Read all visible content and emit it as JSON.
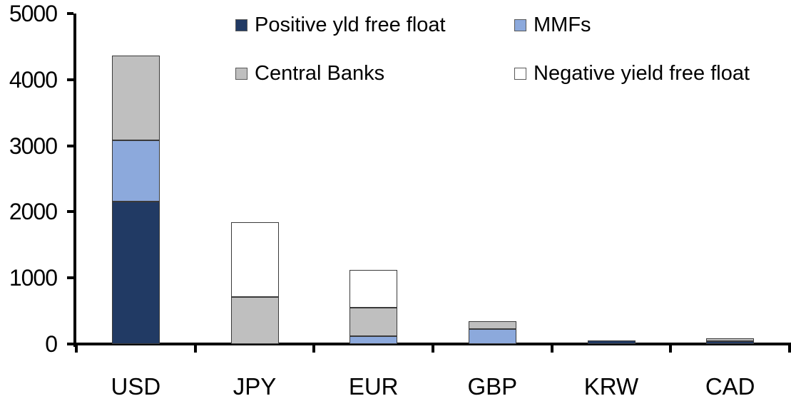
{
  "chart_data": {
    "type": "bar",
    "subtype": "stacked-vertical",
    "title": "",
    "xlabel": "",
    "ylabel": "",
    "categories": [
      "USD",
      "JPY",
      "EUR",
      "GBP",
      "KRW",
      "CAD"
    ],
    "series": [
      {
        "name": "Positive yld free float",
        "color": "#213A64",
        "values": [
          2150,
          0,
          0,
          0,
          50,
          40
        ]
      },
      {
        "name": "MMFs",
        "color": "#8CA9DC",
        "values": [
          930,
          0,
          120,
          230,
          0,
          0
        ]
      },
      {
        "name": "Central Banks",
        "color": "#BFBFBF",
        "values": [
          1280,
          710,
          430,
          110,
          0,
          45
        ]
      },
      {
        "name": "Negative yield free float",
        "color": "#FFFFFF",
        "values": [
          0,
          1130,
          570,
          0,
          0,
          0
        ]
      }
    ],
    "totals": [
      4360,
      1840,
      1120,
      340,
      50,
      85
    ],
    "ylim": [
      0,
      5000
    ],
    "yticks": [
      0,
      1000,
      2000,
      3000,
      4000,
      5000
    ],
    "grid": false,
    "legend_position": "top",
    "axis_color": "#000000",
    "segment_border_color": "#3a3a3a"
  }
}
